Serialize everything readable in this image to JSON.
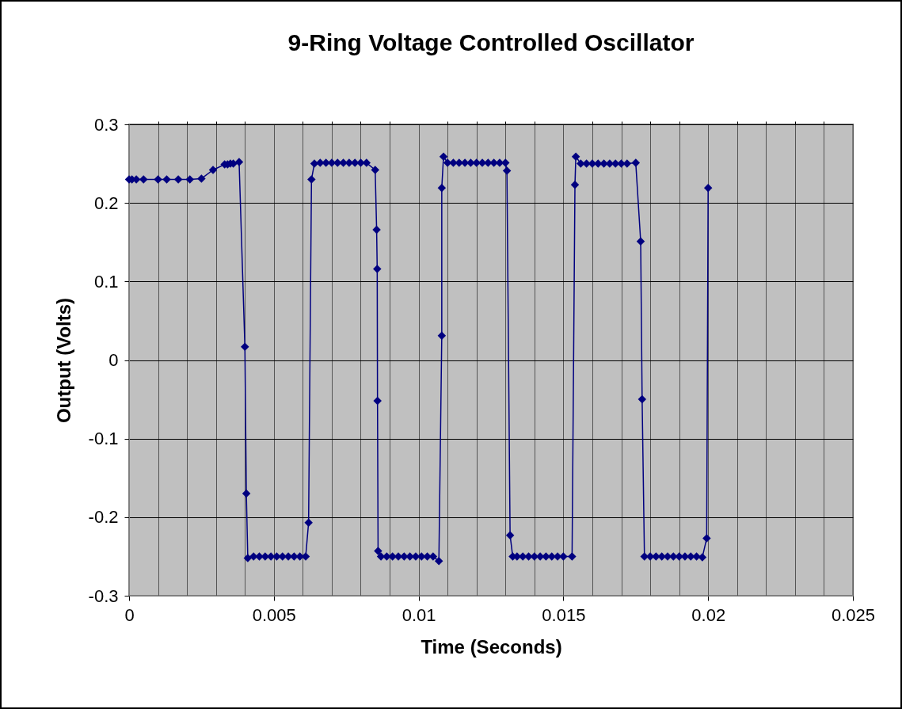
{
  "chart_data": {
    "type": "line",
    "title": "9-Ring Voltage Controlled Oscillator",
    "xlabel": "Time (Seconds)",
    "ylabel": "Output (Volts)",
    "series": [
      {
        "color": "#000080",
        "x": [
          0,
          0.0001,
          0.00025,
          0.0005,
          0.001,
          0.0013,
          0.0017,
          0.0021,
          0.0025,
          0.0029,
          0.0033,
          0.0034,
          0.0035,
          0.0036,
          0.0038,
          0.004,
          0.00405,
          0.0041,
          0.0043,
          0.0045,
          0.0047,
          0.0049,
          0.0051,
          0.0053,
          0.0055,
          0.0057,
          0.0059,
          0.0061,
          0.0062,
          0.0063,
          0.0064,
          0.0066,
          0.0068,
          0.007,
          0.0072,
          0.0074,
          0.0076,
          0.0078,
          0.008,
          0.0082,
          0.0085,
          0.00855,
          0.00857,
          0.00858,
          0.0086,
          0.0087,
          0.0089,
          0.0091,
          0.0093,
          0.0095,
          0.0097,
          0.0099,
          0.0101,
          0.0103,
          0.0105,
          0.0107,
          0.0108,
          0.0108,
          0.01086,
          0.011,
          0.0112,
          0.0114,
          0.0116,
          0.0118,
          0.012,
          0.0122,
          0.0124,
          0.0126,
          0.0128,
          0.013,
          0.01305,
          0.01316,
          0.01325,
          0.0134,
          0.0136,
          0.0138,
          0.014,
          0.0142,
          0.0144,
          0.0146,
          0.0148,
          0.015,
          0.0153,
          0.0154,
          0.01543,
          0.0156,
          0.0158,
          0.016,
          0.0162,
          0.0164,
          0.0166,
          0.0168,
          0.017,
          0.0172,
          0.0175,
          0.01767,
          0.01772,
          0.0178,
          0.018,
          0.0182,
          0.0184,
          0.0186,
          0.0188,
          0.019,
          0.0192,
          0.0194,
          0.0196,
          0.0198,
          0.01995,
          0.02
        ],
        "values": [
          0.23,
          0.23,
          0.23,
          0.23,
          0.23,
          0.23,
          0.23,
          0.23,
          0.231,
          0.242,
          0.249,
          0.249,
          0.25,
          0.25,
          0.252,
          0.017,
          -0.17,
          -0.252,
          -0.25,
          -0.25,
          -0.25,
          -0.25,
          -0.25,
          -0.25,
          -0.25,
          -0.25,
          -0.25,
          -0.25,
          -0.207,
          0.23,
          0.25,
          0.251,
          0.251,
          0.251,
          0.251,
          0.251,
          0.251,
          0.251,
          0.251,
          0.251,
          0.242,
          0.166,
          0.116,
          -0.052,
          -0.243,
          -0.25,
          -0.25,
          -0.25,
          -0.25,
          -0.25,
          -0.25,
          -0.25,
          -0.25,
          -0.25,
          -0.25,
          -0.256,
          0.031,
          0.219,
          0.259,
          0.251,
          0.251,
          0.251,
          0.251,
          0.251,
          0.251,
          0.251,
          0.251,
          0.251,
          0.251,
          0.251,
          0.241,
          -0.223,
          -0.25,
          -0.25,
          -0.25,
          -0.25,
          -0.25,
          -0.25,
          -0.25,
          -0.25,
          -0.25,
          -0.25,
          -0.25,
          0.223,
          0.259,
          0.25,
          0.25,
          0.25,
          0.25,
          0.25,
          0.25,
          0.25,
          0.25,
          0.25,
          0.251,
          0.151,
          -0.05,
          -0.25,
          -0.25,
          -0.25,
          -0.25,
          -0.25,
          -0.25,
          -0.25,
          -0.25,
          -0.25,
          -0.25,
          -0.251,
          -0.227,
          0.219
        ]
      }
    ],
    "xlim": [
      0,
      0.025
    ],
    "xticks": [
      0,
      {
        "value": 0.001,
        "label": null
      },
      {
        "value": 0.002,
        "label": null
      },
      {
        "value": 0.003,
        "label": null
      },
      {
        "value": 0.004,
        "label": null
      },
      0.005,
      {
        "value": 0.006,
        "label": null
      },
      {
        "value": 0.007,
        "label": null
      },
      {
        "value": 0.008,
        "label": null
      },
      {
        "value": 0.009,
        "label": null
      },
      0.01,
      {
        "value": 0.011,
        "label": null
      },
      {
        "value": 0.012,
        "label": null
      },
      {
        "value": 0.013,
        "label": null
      },
      {
        "value": 0.014,
        "label": null
      },
      0.015,
      {
        "value": 0.016,
        "label": null
      },
      {
        "value": 0.017,
        "label": null
      },
      {
        "value": 0.018,
        "label": null
      },
      {
        "value": 0.019,
        "label": null
      },
      0.02,
      {
        "value": 0.021,
        "label": null
      },
      {
        "value": 0.022,
        "label": null
      },
      {
        "value": 0.023,
        "label": null
      },
      {
        "value": 0.024,
        "label": null
      },
      0.025
    ],
    "ylim": [
      -0.3,
      0.3
    ],
    "yticks": [
      -0.3,
      -0.2,
      -0.1,
      0,
      0.1,
      0.2,
      0.3
    ],
    "grid": true,
    "marker": "diamond",
    "line_style": "solid"
  }
}
